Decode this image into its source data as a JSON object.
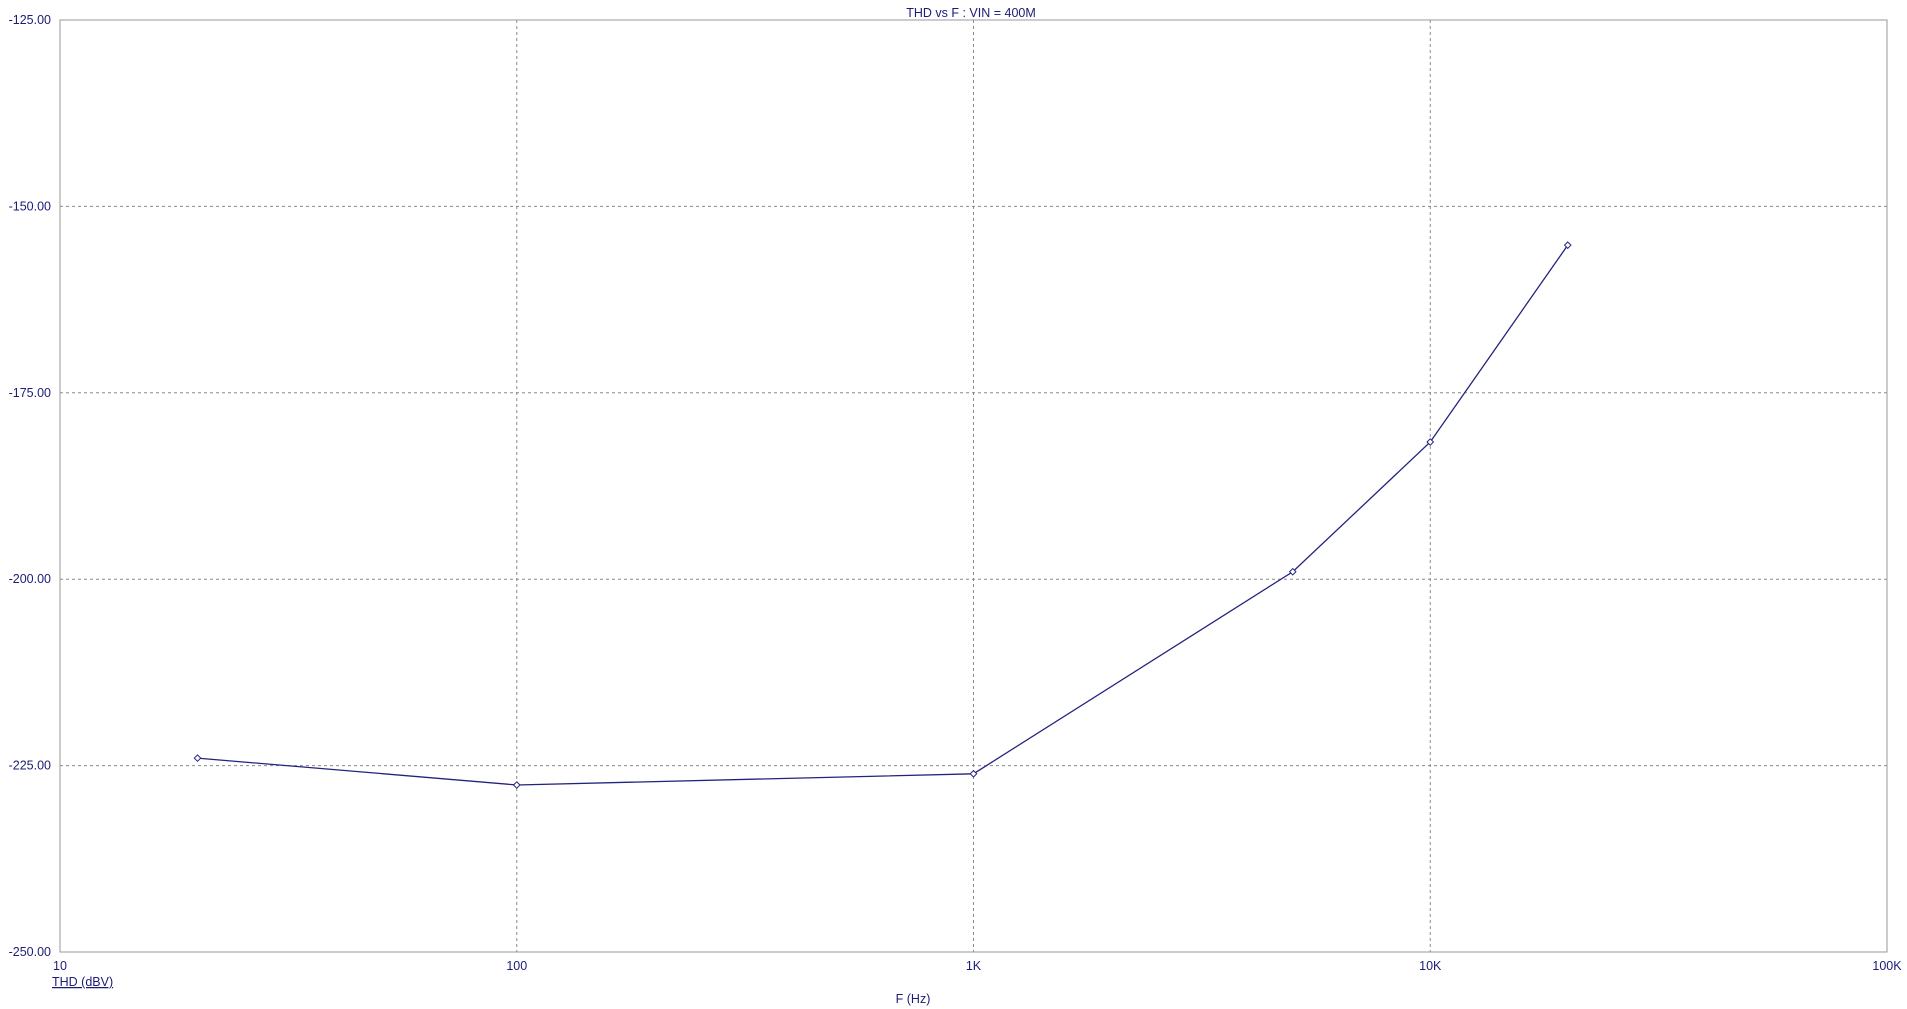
{
  "chart_data": {
    "type": "line",
    "title": "THD vs F : VIN = 400M",
    "xlabel": "F (Hz)",
    "ylabel": "THD (dBV)",
    "x_scale": "log",
    "xlim": [
      10,
      100000
    ],
    "ylim": [
      -250,
      -125
    ],
    "x_ticks": [
      {
        "value": 10,
        "label": "10"
      },
      {
        "value": 100,
        "label": "100"
      },
      {
        "value": 1000,
        "label": "1K"
      },
      {
        "value": 10000,
        "label": "10K"
      },
      {
        "value": 100000,
        "label": "100K"
      }
    ],
    "y_ticks": [
      {
        "value": -125,
        "label": "-125.00"
      },
      {
        "value": -150,
        "label": "-150.00"
      },
      {
        "value": -175,
        "label": "-175.00"
      },
      {
        "value": -200,
        "label": "-200.00"
      },
      {
        "value": -225,
        "label": "-225.00"
      },
      {
        "value": -250,
        "label": "-250.00"
      }
    ],
    "grid": true,
    "series": [
      {
        "x": [
          20,
          100,
          1000,
          5000,
          10000,
          20000
        ],
        "y": [
          -224.0,
          -227.6,
          -226.1,
          -199.0,
          -181.6,
          -155.2
        ]
      }
    ],
    "colors": {
      "series": "#23237e",
      "axis": "#1c1c78",
      "grid": "#8a8a8a",
      "frame": "#9a9a9a"
    }
  }
}
